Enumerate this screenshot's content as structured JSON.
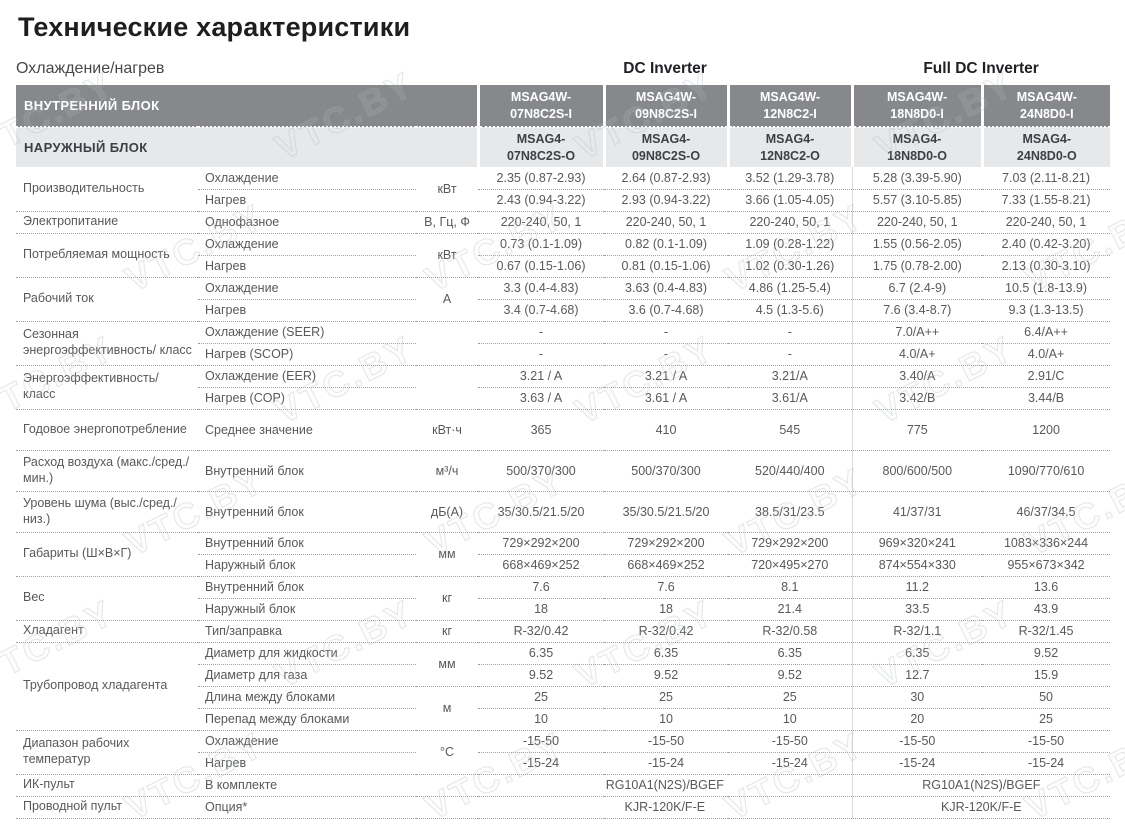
{
  "page": {
    "title": "Технические характеристики",
    "subtitle": "Охлаждение/нагрев",
    "watermark": "VTC.BY"
  },
  "colors": {
    "header_dark_bg": "#86888b",
    "header_light_bg": "#e7e8e9",
    "header_dark_text": "#ffffff",
    "body_text": "#58595b",
    "title_text": "#1d1e20"
  },
  "header": {
    "groups": [
      {
        "label": "DC Inverter",
        "span": 3
      },
      {
        "label": "Full DC Inverter",
        "span": 2
      }
    ],
    "indoor_label": "ВНУТРЕННИЙ БЛОК",
    "outdoor_label": "НАРУЖНЫЙ БЛОК",
    "indoor_models": [
      "MSAG4W-07N8C2S-I",
      "MSAG4W-09N8C2S-I",
      "MSAG4W-12N8C2-I",
      "MSAG4W-18N8D0-I",
      "MSAG4W-24N8D0-I"
    ],
    "outdoor_models": [
      "MSAG4-07N8C2S-O",
      "MSAG4-09N8C2S-O",
      "MSAG4-12N8C2-O",
      "MSAG4-18N8D0-O",
      "MSAG4-24N8D0-O"
    ]
  },
  "spec_groups": [
    {
      "label": "Производительность",
      "rows": [
        {
          "sub": "Охлаждение",
          "unit": "кВт",
          "unit_span": 2,
          "values": [
            "2.35 (0.87-2.93)",
            "2.64 (0.87-2.93)",
            "3.52 (1.29-3.78)",
            "5.28 (3.39-5.90)",
            "7.03 (2.11-8.21)"
          ]
        },
        {
          "sub": "Нагрев",
          "values": [
            "2.43 (0.94-3.22)",
            "2.93 (0.94-3.22)",
            "3.66 (1.05-4.05)",
            "5.57 (3.10-5.85)",
            "7.33 (1.55-8.21)"
          ]
        }
      ]
    },
    {
      "label": "Электропитание",
      "rows": [
        {
          "sub": "Однофазное",
          "unit": "В, Гц, Ф",
          "unit_span": 1,
          "values": [
            "220-240, 50, 1",
            "220-240, 50, 1",
            "220-240, 50, 1",
            "220-240, 50, 1",
            "220-240, 50, 1"
          ]
        }
      ]
    },
    {
      "label": "Потребляемая мощность",
      "rows": [
        {
          "sub": "Охлаждение",
          "unit": "кВт",
          "unit_span": 2,
          "values": [
            "0.73 (0.1-1.09)",
            "0.82 (0.1-1.09)",
            "1.09 (0.28-1.22)",
            "1.55 (0.56-2.05)",
            "2.40 (0.42-3.20)"
          ]
        },
        {
          "sub": "Нагрев",
          "values": [
            "0.67 (0.15-1.06)",
            "0.81 (0.15-1.06)",
            "1.02 (0.30-1.26)",
            "1.75 (0.78-2.00)",
            "2.13 (0.30-3.10)"
          ]
        }
      ]
    },
    {
      "label": "Рабочий ток",
      "rows": [
        {
          "sub": "Охлаждение",
          "unit": "А",
          "unit_span": 2,
          "values": [
            "3.3 (0.4-4.83)",
            "3.63 (0.4-4.83)",
            "4.86 (1.25-5.4)",
            "6.7 (2.4-9)",
            "10.5 (1.8-13.9)"
          ]
        },
        {
          "sub": "Нагрев",
          "values": [
            "3.4 (0.7-4.68)",
            "3.6 (0.7-4.68)",
            "4.5 (1.3-5.6)",
            "7.6 (3.4-8.7)",
            "9.3 (1.3-13.5)"
          ]
        }
      ]
    },
    {
      "label": "Сезонная энергоэффективность/ класс",
      "rows": [
        {
          "sub": "Охлаждение (SEER)",
          "unit": "",
          "unit_span": 2,
          "values": [
            "-",
            "-",
            "-",
            "7.0/A++",
            "6.4/A++"
          ]
        },
        {
          "sub": "Нагрев (SCOP)",
          "values": [
            "-",
            "-",
            "-",
            "4.0/A+",
            "4.0/A+"
          ]
        }
      ]
    },
    {
      "label": "Энергоэффективность/ класс",
      "rows": [
        {
          "sub": "Охлаждение (EER)",
          "unit": "",
          "unit_span": 2,
          "values": [
            "3.21 / A",
            "3.21 / A",
            "3.21/A",
            "3.40/A",
            "2.91/C"
          ]
        },
        {
          "sub": "Нагрев (COP)",
          "values": [
            "3.63 / A",
            "3.61 / A",
            "3.61/A",
            "3.42/B",
            "3.44/B"
          ]
        }
      ]
    },
    {
      "label": "Годовое энергопотребление",
      "tall": true,
      "rows": [
        {
          "sub": "Среднее значение",
          "unit": "кВт·ч",
          "unit_span": 1,
          "values": [
            "365",
            "410",
            "545",
            "775",
            "1200"
          ]
        }
      ]
    },
    {
      "label": "Расход воздуха (макс./сред./мин.)",
      "tall": true,
      "rows": [
        {
          "sub": "Внутренний блок",
          "unit": "м³/ч",
          "unit_span": 1,
          "values": [
            "500/370/300",
            "500/370/300",
            "520/440/400",
            "800/600/500",
            "1090/770/610"
          ]
        }
      ]
    },
    {
      "label": "Уровень шума (выс./сред./низ.)",
      "tall": true,
      "rows": [
        {
          "sub": "Внутренний блок",
          "unit": "дБ(А)",
          "unit_span": 1,
          "values": [
            "35/30.5/21.5/20",
            "35/30.5/21.5/20",
            "38.5/31/23.5",
            "41/37/31",
            "46/37/34.5"
          ]
        }
      ]
    },
    {
      "label": "Габариты (Ш×В×Г)",
      "rows": [
        {
          "sub": "Внутренний блок",
          "unit": "мм",
          "unit_span": 2,
          "values": [
            "729×292×200",
            "729×292×200",
            "729×292×200",
            "969×320×241",
            "1083×336×244"
          ]
        },
        {
          "sub": "Наружный блок",
          "values": [
            "668×469×252",
            "668×469×252",
            "720×495×270",
            "874×554×330",
            "955×673×342"
          ]
        }
      ]
    },
    {
      "label": "Вес",
      "rows": [
        {
          "sub": "Внутренний блок",
          "unit": "кг",
          "unit_span": 2,
          "values": [
            "7.6",
            "7.6",
            "8.1",
            "11.2",
            "13.6"
          ]
        },
        {
          "sub": "Наружный блок",
          "values": [
            "18",
            "18",
            "21.4",
            "33.5",
            "43.9"
          ]
        }
      ]
    },
    {
      "label": "Хладагент",
      "rows": [
        {
          "sub": "Тип/заправка",
          "unit": "кг",
          "unit_span": 1,
          "values": [
            "R-32/0.42",
            "R-32/0.42",
            "R-32/0.58",
            "R-32/1.1",
            "R-32/1.45"
          ]
        }
      ]
    },
    {
      "label": "Трубопровод хладагента",
      "rows": [
        {
          "sub": "Диаметр для жидкости",
          "unit": "мм",
          "unit_span": 2,
          "values": [
            "6.35",
            "6.35",
            "6.35",
            "6.35",
            "9.52"
          ]
        },
        {
          "sub": "Диаметр для газа",
          "values": [
            "9.52",
            "9.52",
            "9.52",
            "12.7",
            "15.9"
          ]
        },
        {
          "sub": "Длина между блоками",
          "unit": "м",
          "unit_span": 2,
          "values": [
            "25",
            "25",
            "25",
            "30",
            "50"
          ]
        },
        {
          "sub": "Перепад между блоками",
          "values": [
            "10",
            "10",
            "10",
            "20",
            "25"
          ]
        }
      ]
    },
    {
      "label": "Диапазон рабочих температур",
      "rows": [
        {
          "sub": "Охлаждение",
          "unit": "°C",
          "unit_span": 2,
          "values": [
            "-15-50",
            "-15-50",
            "-15-50",
            "-15-50",
            "-15-50"
          ]
        },
        {
          "sub": "Нагрев",
          "values": [
            "-15-24",
            "-15-24",
            "-15-24",
            "-15-24",
            "-15-24"
          ]
        }
      ]
    },
    {
      "label": "ИК-пульт",
      "rows": [
        {
          "sub": "В комплекте",
          "unit": "",
          "unit_span": 1,
          "values": [
            {
              "text": "RG10A1(N2S)/BGEF",
              "span": 3
            },
            {
              "text": "RG10A1(N2S)/BGEF",
              "span": 2
            }
          ]
        }
      ]
    },
    {
      "label": "Проводной пульт",
      "rows": [
        {
          "sub": "Опция*",
          "unit": "",
          "unit_span": 1,
          "values": [
            {
              "text": "KJR-120K/F-E",
              "span": 3
            },
            {
              "text": "KJR-120K/F-E",
              "span": 2
            }
          ]
        }
      ]
    }
  ]
}
